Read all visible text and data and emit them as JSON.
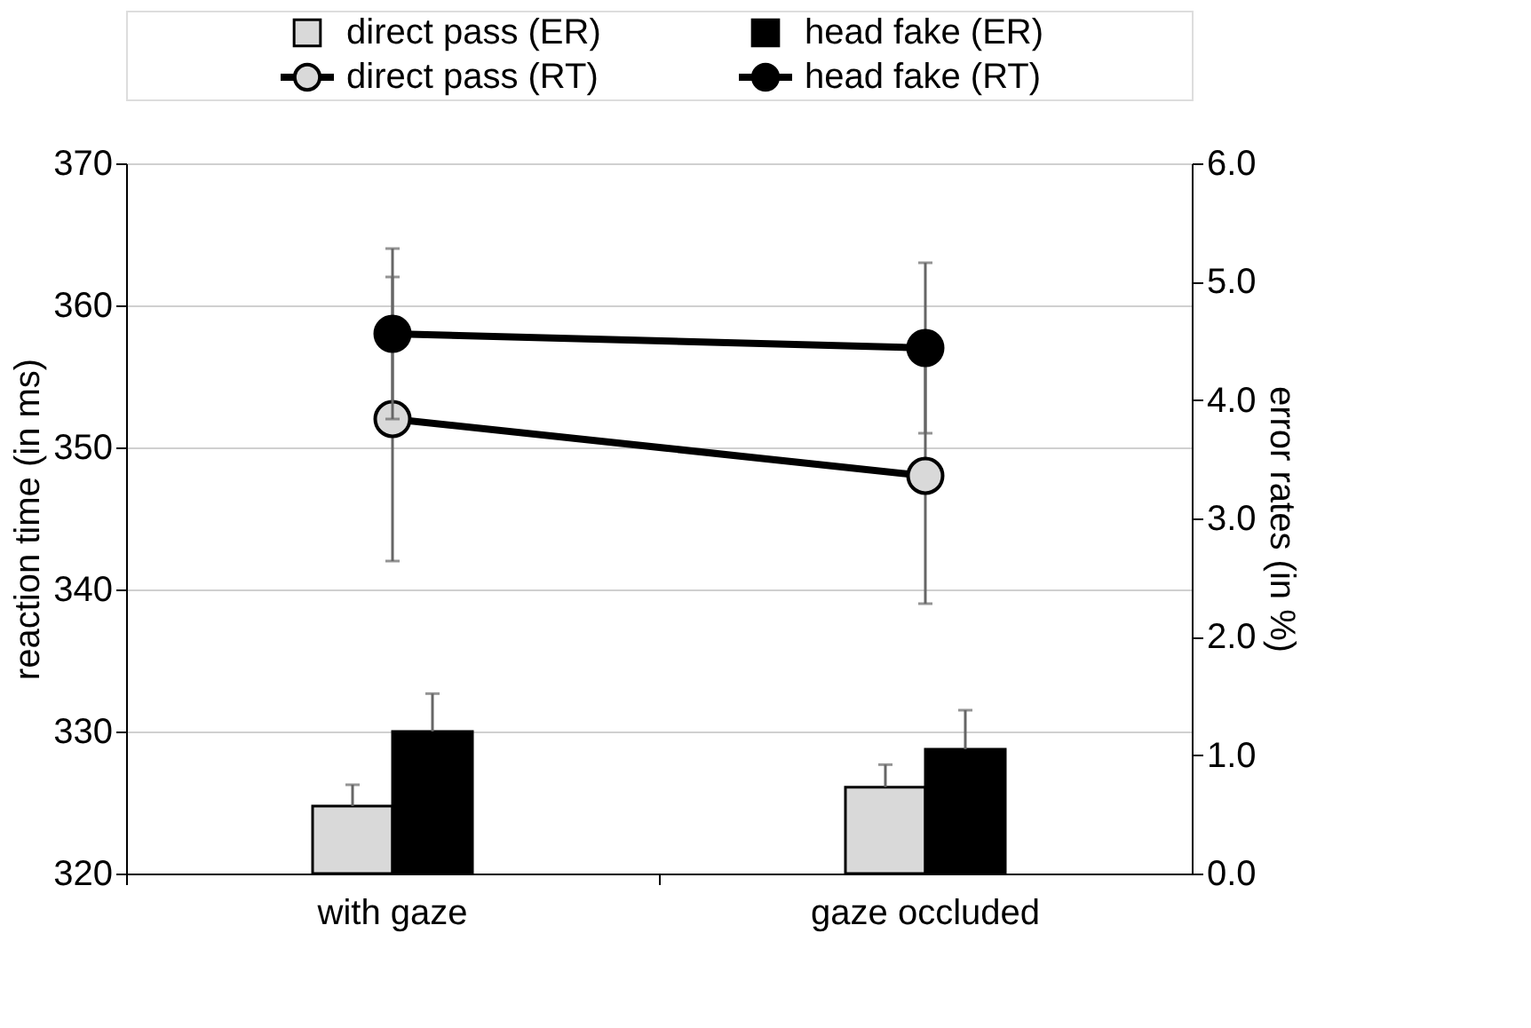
{
  "chart_data": {
    "type": "bar",
    "categories": [
      "with gaze",
      "gaze occluded"
    ],
    "ylabel": "reaction time (in ms)",
    "y2label": "error rates (in %)",
    "ylim": [
      320,
      370
    ],
    "yticks": [
      320,
      330,
      340,
      350,
      360,
      370
    ],
    "y2lim": [
      0,
      6
    ],
    "y2ticks": [
      {
        "value": 0,
        "label": "0.0"
      },
      {
        "value": 1,
        "label": "1.0"
      },
      {
        "value": 2,
        "label": "2.0"
      },
      {
        "value": 3,
        "label": "3.0"
      },
      {
        "value": 4,
        "label": "4.0"
      },
      {
        "value": 5,
        "label": "5.0"
      },
      {
        "value": 6,
        "label": "6.0"
      }
    ],
    "grid": "y",
    "legend": "top",
    "marker": "circle",
    "line_style": "solid",
    "series": [
      {
        "name": "direct pass (ER)",
        "axis": "y2",
        "color": "#d9d9d9",
        "values": [
          0.57,
          0.73
        ],
        "errors": [
          [
            0.57,
            0.75
          ],
          [
            0.73,
            0.92
          ]
        ]
      },
      {
        "name": "head fake (ER)",
        "axis": "y2",
        "color": "#000000",
        "values": [
          1.2,
          1.05
        ],
        "errors": [
          [
            1.2,
            1.52
          ],
          [
            1.05,
            1.38
          ]
        ]
      },
      {
        "name": "direct pass (RT)",
        "type": "line",
        "color": "#d9d9d9",
        "values": [
          352,
          348
        ],
        "errors": [
          10,
          9
        ]
      },
      {
        "name": "head fake (RT)",
        "type": "line",
        "color": "#000000",
        "values": [
          358,
          357
        ],
        "errors": [
          6,
          6
        ]
      }
    ]
  }
}
